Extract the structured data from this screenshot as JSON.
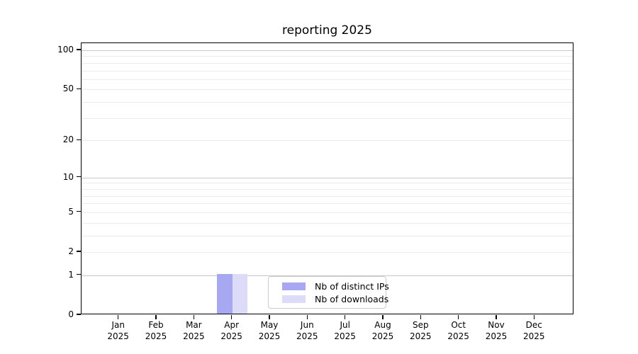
{
  "chart_data": {
    "type": "bar",
    "title": "reporting 2025",
    "categories": [
      "Jan",
      "Feb",
      "Mar",
      "Apr",
      "May",
      "Jun",
      "Jul",
      "Aug",
      "Sep",
      "Oct",
      "Nov",
      "Dec"
    ],
    "x_tick_second_line": "2025",
    "series": [
      {
        "name": "Nb of distinct IPs",
        "color": "#a8a8f2",
        "values": [
          0,
          0,
          0,
          1,
          0,
          0,
          0,
          0,
          0,
          0,
          0,
          0
        ]
      },
      {
        "name": "Nb of downloads",
        "color": "#dcdcf8",
        "values": [
          0,
          0,
          0,
          1,
          0,
          0,
          0,
          0,
          0,
          0,
          0,
          0
        ]
      }
    ],
    "y_axis": {
      "scale": "log10(1+x)",
      "tick_values": [
        0,
        1,
        2,
        5,
        10,
        20,
        50,
        100
      ],
      "minor_gridline_values": [
        2,
        3,
        4,
        5,
        6,
        7,
        8,
        9,
        20,
        30,
        40,
        50,
        60,
        70,
        80,
        90
      ],
      "major_gridline_values": [
        1,
        10,
        100
      ],
      "range": [
        0,
        112
      ]
    },
    "legend": {
      "position": "bottom-center"
    },
    "grid": true,
    "colors": {
      "major_grid": "#c8c8c8",
      "minor_grid": "#ececec",
      "spine": "#000000",
      "background": "#ffffff"
    }
  }
}
